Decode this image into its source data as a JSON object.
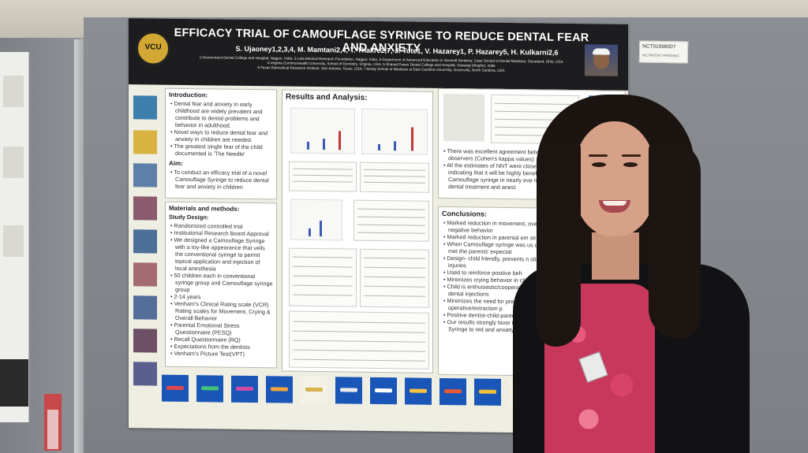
{
  "poster": {
    "title": "EFFICACY TRIAL OF CAMOUFLAGE SYRINGE TO REDUCE DENTAL FEAR AND ANXIETY",
    "authors": "S. Ujaoney1,2,3,4, M. Mamtani2,4, T. Thakre2,7, J. Tote1, V. Hazarey1, P. Hazarey5, H. Kulkarni2,6",
    "affiliations": [
      "1-Government Dental College and Hospital, Nagpur, India; 2-Lata Medical Research Foundation, Nagpur, India; 3-Department of Advanced Education in General Dentistry, Case School of Dental Medicine, Cleveland, Ohio, USA",
      "4-Virginia Commonwealth University, School of Dentistry, Virginia, USA; 5-Sharad Pawar Dental College and Hospital, Sawangi (Meghe), India",
      "6-Texas Biomedical Research Institute, San Antonio, Texas, USA; 7-Brody School of Medicine at East Carolina University, Greenville, North Carolina, USA"
    ],
    "logo_text": "VCU",
    "introduction": {
      "heading": "Introduction:",
      "bullets": [
        "Dental fear and anxiety in early childhood are widely prevalent and contribute to dental problems and behavior in adulthood.",
        "Novel ways to reduce dental fear and anxiety in children are needed.",
        "The greatest single fear of the child documented is 'The Needle'"
      ]
    },
    "aim": {
      "heading": "Aim:",
      "bullets": [
        "To conduct an efficacy trial of a novel Camouflage Syringe to reduce dental fear and anxiety in children"
      ]
    },
    "methods": {
      "heading": "Materials and methods:",
      "subheading": "Study Design:",
      "bullets": [
        "Randomized controlled trial",
        "Institutional Research Board Approval",
        "We designed a Camouflage Syringe with a toy-like appearance that veils the conventional syringe to permit topical application and injection of local anesthesia",
        "50 children each in conventional syringe group and Camouflage syringe group",
        "2-14 years",
        "Venham's Clinical Rating scale (VCR) Rating scales for Movement, Crying & Overall Behavior",
        "Parental Emotional Stress Questionnaire (PESQ)",
        "Recall Questionnaire (RQ)",
        "Expectations from the dentists",
        "Venham's Picture Test(VPT)"
      ]
    },
    "results": {
      "heading": "Results and Analysis:"
    },
    "agreement": {
      "bullets": [
        "There was excellent agreement between two observers (Cohen's kappa values)",
        "All the estimates of NNT were close to u indicating that it will be highly benefic use Camouflage syringe in nearly eve needing dental treatment and anest"
      ]
    },
    "conclusions": {
      "heading": "Conclusions:",
      "bullets": [
        "Marked reduction in movement, overall negative behavior",
        "Marked reduction in parental em stress",
        "When Camouflage syringe was us dentist met the parents' expectat",
        "Design- child friendly, prevents n stick injuries",
        "Used to reinforce positive beh",
        "Minimizes crying behavior in clinic",
        "Child is enthusiastic/cooperat and after dental injections",
        "Minimizes the need for pre-m simple operative/extraction p",
        "Positive dentist-child-parent",
        "Our results strongly favor th Camouflage Syringe to red and anxiety in children"
      ]
    }
  },
  "badge": {
    "line1": "NCT01998007",
    "line2": "NO PATENT PENDING"
  },
  "colors": {
    "header_bg": "#1d1d1f",
    "poster_bg": "#efeee2",
    "syringe_tile": "#1a56b8"
  }
}
